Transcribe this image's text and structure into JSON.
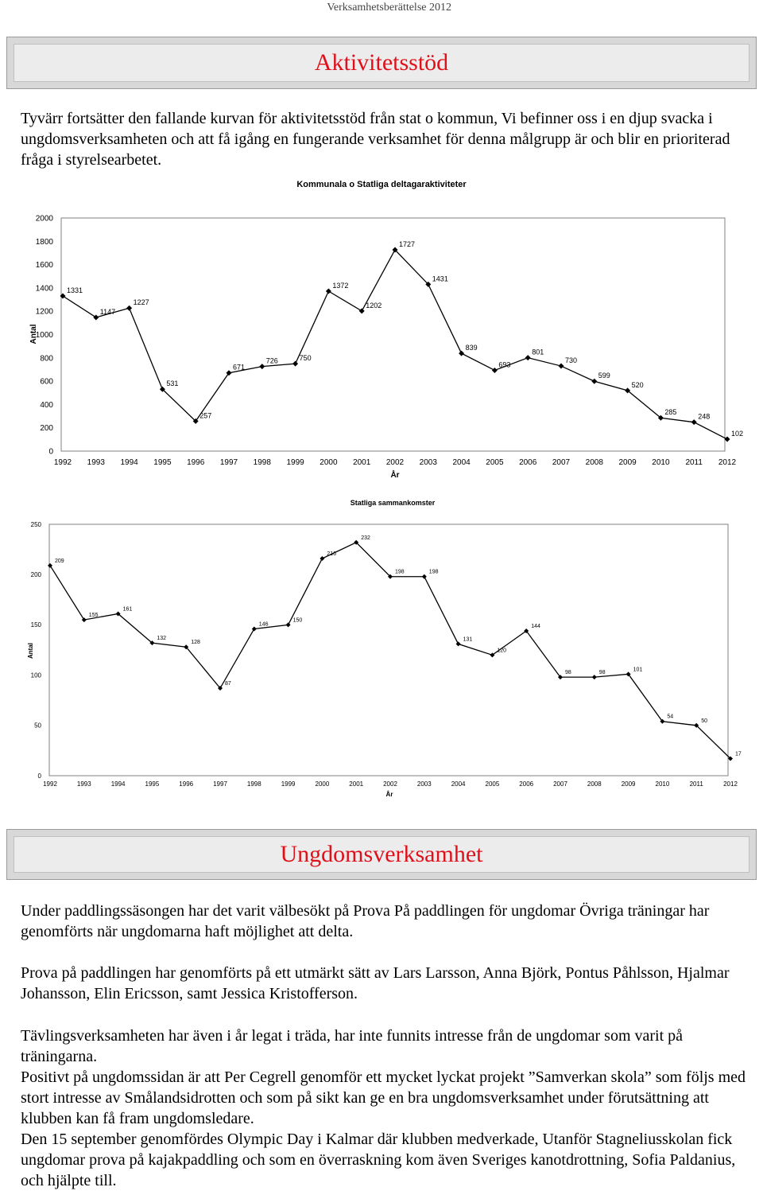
{
  "header": {
    "running_title": "Verksamhetsberättelse 2012"
  },
  "section1": {
    "title": "Aktivitetsstöd",
    "intro": "Tyvärr fortsätter den fallande kurvan för aktivitetsstöd från stat o kommun, Vi befinner oss i en djup svacka i ungdomsverksamheten och att få igång en fungerande verksamhet för denna målgrupp är och blir en prioriterad fråga i styrelsearbetet."
  },
  "section2": {
    "title": "Ungdomsverksamhet",
    "paragraphs": [
      "Under paddlingssäsongen har det varit välbesökt på Prova På paddlingen för ungdomar Övriga träningar har genomförts när ungdomarna haft möjlighet att delta.",
      "Prova på paddlingen har genomförts på ett utmärkt sätt av Lars Larsson, Anna Björk, Pontus Påhlsson, Hjalmar Johansson, Elin Ericsson, samt Jessica Kristofferson.",
      "Tävlingsverksamheten har även i år legat i träda, har inte funnits intresse från de ungdomar som varit på träningarna.",
      "Positivt på ungdomssidan är att Per Cegrell genomför ett mycket lyckat projekt ”Samverkan skola” som följs med stort intresse av Smålandsidrotten och som på sikt kan ge en bra ungdomsverksamhet under förutsättning att klubben kan få fram ungdomsledare.",
      "Den 15 september genomfördes Olympic Day i Kalmar där klubben medverkade, Utanför Stagneliusskolan fick ungdomar prova på kajakpaddling och som en överraskning kom även Sveriges kanotdrottning, Sofia Paldanius, och hjälpte till."
    ]
  },
  "chart_data": [
    {
      "type": "line",
      "title": "Kommunala o Statliga deltagaraktiviteter",
      "xlabel": "År",
      "ylabel": "Antal",
      "ylim": [
        0,
        2000
      ],
      "yticks": [
        0,
        200,
        400,
        600,
        800,
        1000,
        1200,
        1400,
        1600,
        1800,
        2000
      ],
      "grid": false,
      "categories": [
        "1992",
        "1993",
        "1994",
        "1995",
        "1996",
        "1997",
        "1998",
        "1999",
        "2000",
        "2001",
        "2002",
        "2003",
        "2004",
        "2005",
        "2006",
        "2007",
        "2008",
        "2009",
        "2010",
        "2011",
        "2012"
      ],
      "values": [
        1331,
        1147,
        1227,
        531,
        257,
        671,
        726,
        750,
        1372,
        1202,
        1727,
        1431,
        839,
        693,
        801,
        730,
        599,
        520,
        285,
        248,
        102
      ],
      "color": "#000000"
    },
    {
      "type": "line",
      "title": "Statliga sammankomster",
      "xlabel": "År",
      "ylabel": "Antal",
      "ylim": [
        0,
        250
      ],
      "yticks": [
        0,
        50,
        100,
        150,
        200,
        250
      ],
      "grid": false,
      "categories": [
        "1992",
        "1993",
        "1994",
        "1995",
        "1996",
        "1997",
        "1998",
        "1999",
        "2000",
        "2001",
        "2002",
        "2003",
        "2004",
        "2005",
        "2006",
        "2007",
        "2008",
        "2009",
        "2010",
        "2011",
        "2012"
      ],
      "values": [
        209,
        155,
        161,
        132,
        128,
        87,
        146,
        150,
        216,
        232,
        198,
        198,
        131,
        120,
        144,
        98,
        98,
        101,
        54,
        50,
        17
      ],
      "color": "#000000"
    }
  ]
}
